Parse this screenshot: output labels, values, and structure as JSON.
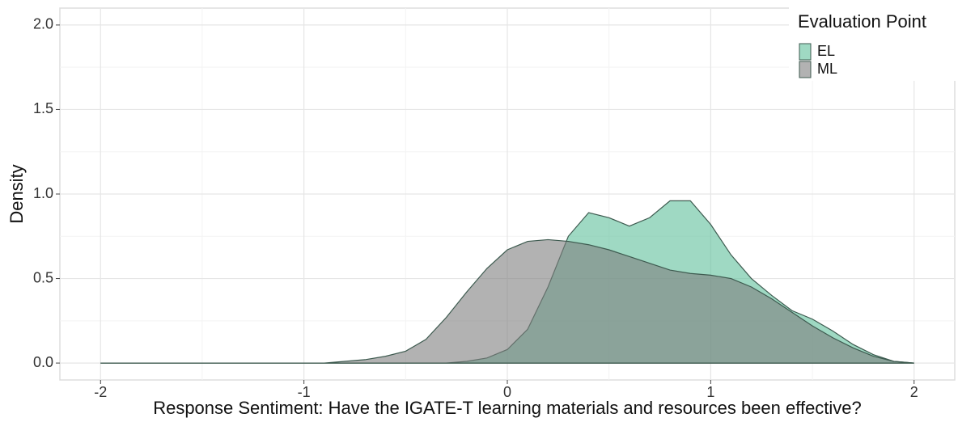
{
  "chart_data": {
    "type": "density",
    "x_label": "Response Sentiment: Have the IGATE-T learning materials and resources been effective?",
    "y_label": "Density",
    "legend_title": "Evaluation Point",
    "legend": "top-right",
    "grid": true,
    "xlim": [
      -2.2,
      2.2
    ],
    "ylim": [
      -0.1,
      2.1
    ],
    "xticks": [
      -2,
      -1,
      0,
      1,
      2
    ],
    "yticks": [
      {
        "value": 0,
        "label": "0.0"
      },
      0.5,
      {
        "value": 1,
        "label": "1.0"
      },
      1.5,
      {
        "value": 2,
        "label": "2.0"
      }
    ],
    "x": [
      -2.0,
      -1.9,
      -1.8,
      -1.7,
      -1.6,
      -1.5,
      -1.4,
      -1.3,
      -1.2,
      -1.1,
      -1.0,
      -0.9,
      -0.8,
      -0.7,
      -0.6,
      -0.5,
      -0.4,
      -0.3,
      -0.2,
      -0.1,
      0.0,
      0.1,
      0.2,
      0.3,
      0.4,
      0.5,
      0.6,
      0.7,
      0.8,
      0.9,
      1.0,
      1.1,
      1.2,
      1.3,
      1.4,
      1.5,
      1.6,
      1.7,
      1.8,
      1.9,
      2.0
    ],
    "series": [
      {
        "name": "EL",
        "color": "#5fbf9b",
        "values": [
          0,
          0,
          0,
          0,
          0,
          0,
          0,
          0,
          0,
          0,
          0,
          0,
          0,
          0,
          0,
          0,
          0,
          0,
          0.01,
          0.03,
          0.08,
          0.2,
          0.45,
          0.75,
          0.89,
          0.86,
          0.81,
          0.86,
          0.96,
          0.96,
          0.82,
          0.64,
          0.5,
          0.4,
          0.31,
          0.26,
          0.19,
          0.11,
          0.05,
          0.01,
          0
        ]
      },
      {
        "name": "ML",
        "color": "#7f7f7f",
        "values": [
          0,
          0,
          0,
          0,
          0,
          0,
          0,
          0,
          0,
          0,
          0,
          0,
          0.01,
          0.02,
          0.04,
          0.07,
          0.14,
          0.27,
          0.42,
          0.56,
          0.67,
          0.72,
          0.73,
          0.72,
          0.7,
          0.67,
          0.63,
          0.59,
          0.55,
          0.53,
          0.52,
          0.5,
          0.45,
          0.38,
          0.3,
          0.22,
          0.15,
          0.09,
          0.04,
          0.01,
          0
        ]
      }
    ]
  }
}
